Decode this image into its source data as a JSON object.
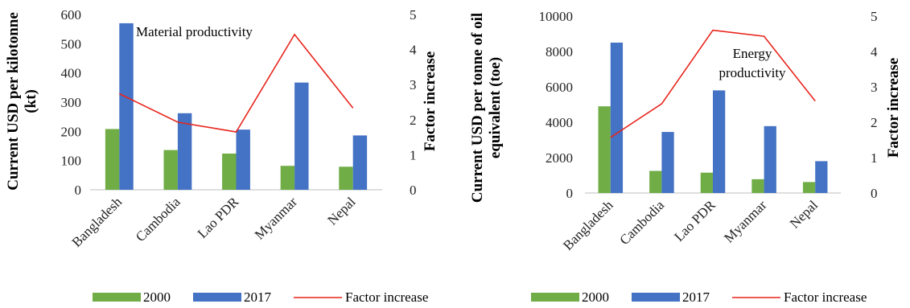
{
  "colors": {
    "y2000": "#70ad47",
    "y2017": "#4472c4",
    "factor": "#e8251c"
  },
  "legend": {
    "s2000": "2000",
    "s2017": "2017",
    "factor": "Factor increase"
  },
  "chart_data": [
    {
      "type": "bar",
      "title": "",
      "annotation": "Material productivity",
      "categories": [
        "Bangladesh",
        "Cambodia",
        "Lao PDR",
        "Myanmar",
        "Nepal"
      ],
      "series": [
        {
          "name": "2000",
          "values": [
            208,
            136,
            124,
            82,
            79
          ]
        },
        {
          "name": "2017",
          "values": [
            570,
            262,
            206,
            367,
            186
          ]
        }
      ],
      "line": {
        "name": "Factor increase",
        "values": [
          2.74,
          1.93,
          1.65,
          4.43,
          2.33
        ]
      },
      "ylabel": "Current USD per kilotonne (kt)",
      "y2label": "Factor increase",
      "ylim": [
        0,
        600
      ],
      "y2lim": [
        0,
        5
      ],
      "yticks": [
        0,
        100,
        200,
        300,
        400,
        500,
        600
      ],
      "y2ticks": [
        0,
        1,
        2,
        3,
        4,
        5
      ],
      "grid": false,
      "legend_position": "bottom"
    },
    {
      "type": "bar",
      "title": "",
      "annotation": [
        "Energy",
        "productivity"
      ],
      "categories": [
        "Bangladesh",
        "Cambodia",
        "Lao PDR",
        "Myanmar",
        "Nepal"
      ],
      "series": [
        {
          "name": "2000",
          "values": [
            4900,
            1250,
            1150,
            780,
            620
          ]
        },
        {
          "name": "2017",
          "values": [
            8500,
            3450,
            5800,
            3780,
            1800
          ]
        }
      ],
      "line": {
        "name": "Factor increase",
        "values": [
          1.57,
          2.52,
          4.6,
          4.43,
          2.6
        ]
      },
      "ylabel": [
        "Current USD per tonne of oil",
        "equivalent (toe)"
      ],
      "y2label": "Factor increase",
      "ylim": [
        0,
        10000
      ],
      "y2lim": [
        0,
        5
      ],
      "yticks": [
        0,
        2000,
        4000,
        6000,
        8000,
        10000
      ],
      "y2ticks": [
        0,
        1,
        2,
        3,
        4,
        5
      ],
      "grid": false,
      "legend_position": "bottom"
    }
  ]
}
